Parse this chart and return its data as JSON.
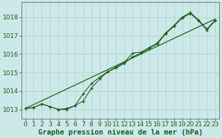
{
  "xlabel": "Graphe pression niveau de la mer (hPa)",
  "bg_color": "#cce8e8",
  "grid_color": "#b0cccc",
  "line_color": "#1a5e1a",
  "ylim": [
    1012.5,
    1018.8
  ],
  "xlim": [
    -0.5,
    23.5
  ],
  "yticks": [
    1013,
    1014,
    1015,
    1016,
    1017,
    1018
  ],
  "xticks": [
    0,
    1,
    2,
    3,
    4,
    5,
    6,
    7,
    8,
    9,
    10,
    11,
    12,
    13,
    14,
    15,
    16,
    17,
    18,
    19,
    20,
    21,
    22,
    23
  ],
  "trend_x": [
    0,
    23
  ],
  "trend_y": [
    1013.05,
    1017.9
  ],
  "line1_x": [
    0,
    1,
    2,
    3,
    4,
    5,
    6,
    7,
    8,
    9,
    10,
    11,
    12,
    13,
    14,
    15,
    16,
    17,
    18,
    19,
    20,
    21,
    22,
    23
  ],
  "line1_y": [
    1013.05,
    1013.1,
    1013.3,
    1013.15,
    1013.0,
    1013.05,
    1013.2,
    1013.85,
    1014.4,
    1014.75,
    1015.05,
    1015.3,
    1015.55,
    1016.05,
    1016.1,
    1016.35,
    1016.6,
    1017.15,
    1017.55,
    1018.0,
    1018.25,
    1017.85,
    1017.35,
    1017.85
  ],
  "line2_x": [
    0,
    1,
    2,
    3,
    4,
    5,
    6,
    7,
    8,
    9,
    10,
    11,
    12,
    13,
    14,
    15,
    16,
    17,
    18,
    19,
    20,
    21,
    22,
    23
  ],
  "line2_y": [
    1013.05,
    1013.1,
    1013.3,
    1013.15,
    1013.0,
    1013.0,
    1013.2,
    1013.45,
    1014.15,
    1014.65,
    1015.05,
    1015.25,
    1015.5,
    1015.85,
    1016.05,
    1016.3,
    1016.55,
    1017.1,
    1017.5,
    1017.95,
    1018.2,
    1017.8,
    1017.3,
    1017.8
  ],
  "font_family": "monospace",
  "xlabel_fontsize": 7.5,
  "tick_fontsize": 6.5,
  "tick_color": "#1a5e1a"
}
